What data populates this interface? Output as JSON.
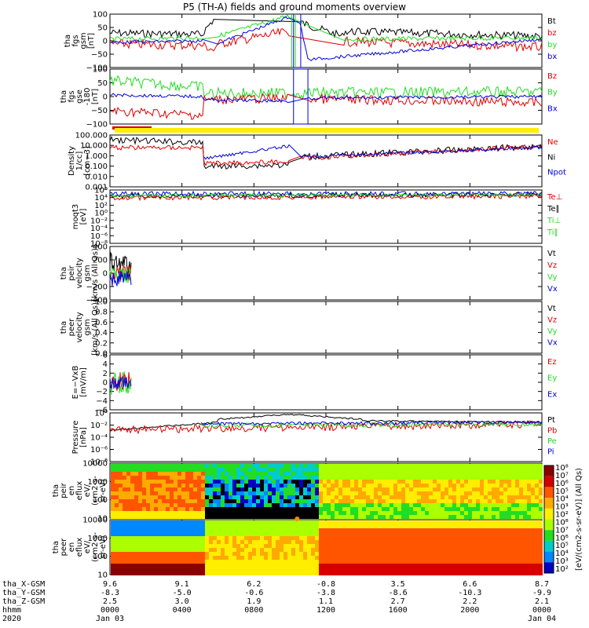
{
  "title": "P5 (TH-A) fields and ground moments overview",
  "colors": {
    "black": "#000000",
    "red": "#e00000",
    "green": "#22dd22",
    "blue": "#0000e0",
    "yellow": "#ffee00",
    "orange": "#ff8800"
  },
  "chart_data": {
    "type": "line",
    "x_ticks_hhmm": [
      "0000",
      "0400",
      "0800",
      "1200",
      "1600",
      "2000",
      "0000"
    ],
    "x_range_hours": [
      0,
      24
    ],
    "ephemeris": {
      "labels": [
        "tha_X-GSM",
        "tha_Y-GSM",
        "tha_Z-GSM",
        "hhmm",
        "2020"
      ],
      "X": [
        "9.6",
        "9.1",
        "6.2",
        "-0.8",
        "3.5",
        "6.6",
        "8.7"
      ],
      "Y": [
        "-8.3",
        "-5.0",
        "-0.6",
        "-3.8",
        "-8.6",
        "-10.3",
        "-9.9"
      ],
      "Z": [
        "2.5",
        "3.0",
        "1.9",
        "1.1",
        "2.7",
        "2.2",
        "2.1"
      ],
      "dates": [
        "Jan 03",
        "Jan 04"
      ]
    },
    "panels": [
      {
        "id": "fgs_gsm",
        "ylabel": [
          "tha",
          "fgs",
          "gsm",
          "[nT]"
        ],
        "ticks": [
          "100",
          "50",
          "0",
          "−50",
          "−100"
        ],
        "legend": [
          {
            "t": "Bt",
            "c": "black"
          },
          {
            "t": "bz",
            "c": "red"
          },
          {
            "t": "by",
            "c": "green"
          },
          {
            "t": "bx",
            "c": "blue"
          }
        ]
      },
      {
        "id": "fgs_gse",
        "ylabel": [
          "tha",
          "fgs",
          "gse",
          "-180",
          "[nT]"
        ],
        "ticks": [
          "100",
          "50",
          "0",
          "−50",
          "−100"
        ],
        "legend": [
          {
            "t": "Bz",
            "c": "red"
          },
          {
            "t": "By",
            "c": "green"
          },
          {
            "t": "Bx",
            "c": "blue"
          }
        ]
      },
      {
        "id": "density",
        "ylabel": [
          "Density",
          "1/cc]",
          "[cm−3]"
        ],
        "ticks": [
          "100.000",
          "10.000",
          "1.000",
          "0.100",
          "0.010",
          "0.001"
        ],
        "legend": [
          {
            "t": "Ne",
            "c": "red"
          },
          {
            "t": "Ni",
            "c": "black"
          },
          {
            "t": "Npot",
            "c": "blue"
          }
        ]
      },
      {
        "id": "temp",
        "ylabel": [
          "moqt3",
          "[eV]"
        ],
        "ticks": [
          "10⁶",
          "10⁴",
          "10²",
          "10⁰",
          "10⁻²",
          "10⁻⁴",
          "10⁻⁶",
          "10⁻⁸"
        ],
        "legend": [
          {
            "t": "Te⊥",
            "c": "red"
          },
          {
            "t": "Te∥",
            "c": "black"
          },
          {
            "t": "Ti⊥",
            "c": "green"
          },
          {
            "t": "Ti∥",
            "c": "green"
          }
        ]
      },
      {
        "id": "peir_vel",
        "ylabel": [
          "tha",
          "peir",
          "velocity",
          "gsm",
          "[km/s (All Qs)]"
        ],
        "ticks": [
          "400",
          "200",
          "0",
          "−200",
          "−400"
        ],
        "legend": [
          {
            "t": "Vt",
            "c": "black"
          },
          {
            "t": "Vz",
            "c": "red"
          },
          {
            "t": "Vy",
            "c": "green"
          },
          {
            "t": "Vx",
            "c": "blue"
          }
        ]
      },
      {
        "id": "peer_vel",
        "ylabel": [
          "tha",
          "peer",
          "velocity",
          "gsm",
          "[km/s (All Qs)]"
        ],
        "ticks": [
          "1.0",
          "0.8",
          "0.6",
          "0.4",
          "0.2",
          "0.0"
        ],
        "legend": [
          {
            "t": "Vt",
            "c": "black"
          },
          {
            "t": "Vz",
            "c": "red"
          },
          {
            "t": "Vy",
            "c": "green"
          },
          {
            "t": "Vx",
            "c": "blue"
          }
        ]
      },
      {
        "id": "efield",
        "ylabel": [
          "E=−VxB",
          "[mV/m]"
        ],
        "ticks": [
          "6",
          "4",
          "2",
          "0",
          "−2",
          "−4",
          "−6"
        ],
        "legend": [
          {
            "t": "Ez",
            "c": "red"
          },
          {
            "t": "Ey",
            "c": "green"
          },
          {
            "t": "Ex",
            "c": "blue"
          }
        ]
      },
      {
        "id": "pressure",
        "ylabel": [
          "Pressure",
          "[nPa]"
        ],
        "ticks": [
          "10⁰",
          "10⁻²",
          "10⁻⁴",
          "10⁻⁶",
          "10⁻⁸"
        ],
        "legend": [
          {
            "t": "Pt",
            "c": "black"
          },
          {
            "t": "Pb",
            "c": "red"
          },
          {
            "t": "Pe",
            "c": "green"
          },
          {
            "t": "Pi",
            "c": "blue"
          }
        ]
      },
      {
        "id": "peir_eflux",
        "ylabel": [
          "tha",
          "peir",
          "en",
          "eflux",
          "eV/",
          "(cm2-s-",
          "sr-eV)"
        ],
        "ticks": [
          "10000",
          "1000",
          "100",
          "10"
        ],
        "legend": []
      },
      {
        "id": "peer_eflux",
        "ylabel": [
          "tha",
          "peer",
          "en",
          "eflux",
          "eV/",
          "(cm2-s-",
          "sr-eV)"
        ],
        "ticks": [
          "10000",
          "1000",
          "100",
          "10"
        ],
        "legend": []
      }
    ],
    "colorbar": {
      "ticks": [
        "10⁸",
        "10⁷",
        "10⁶",
        "10⁵",
        "10⁴",
        "10³",
        "10²",
        "10⁸",
        "10⁷",
        "10⁶",
        "10⁵",
        "10⁴",
        "10³",
        "10²"
      ],
      "label": "[eV/(cm2-s-sr-eV)] (All Qs)"
    }
  }
}
